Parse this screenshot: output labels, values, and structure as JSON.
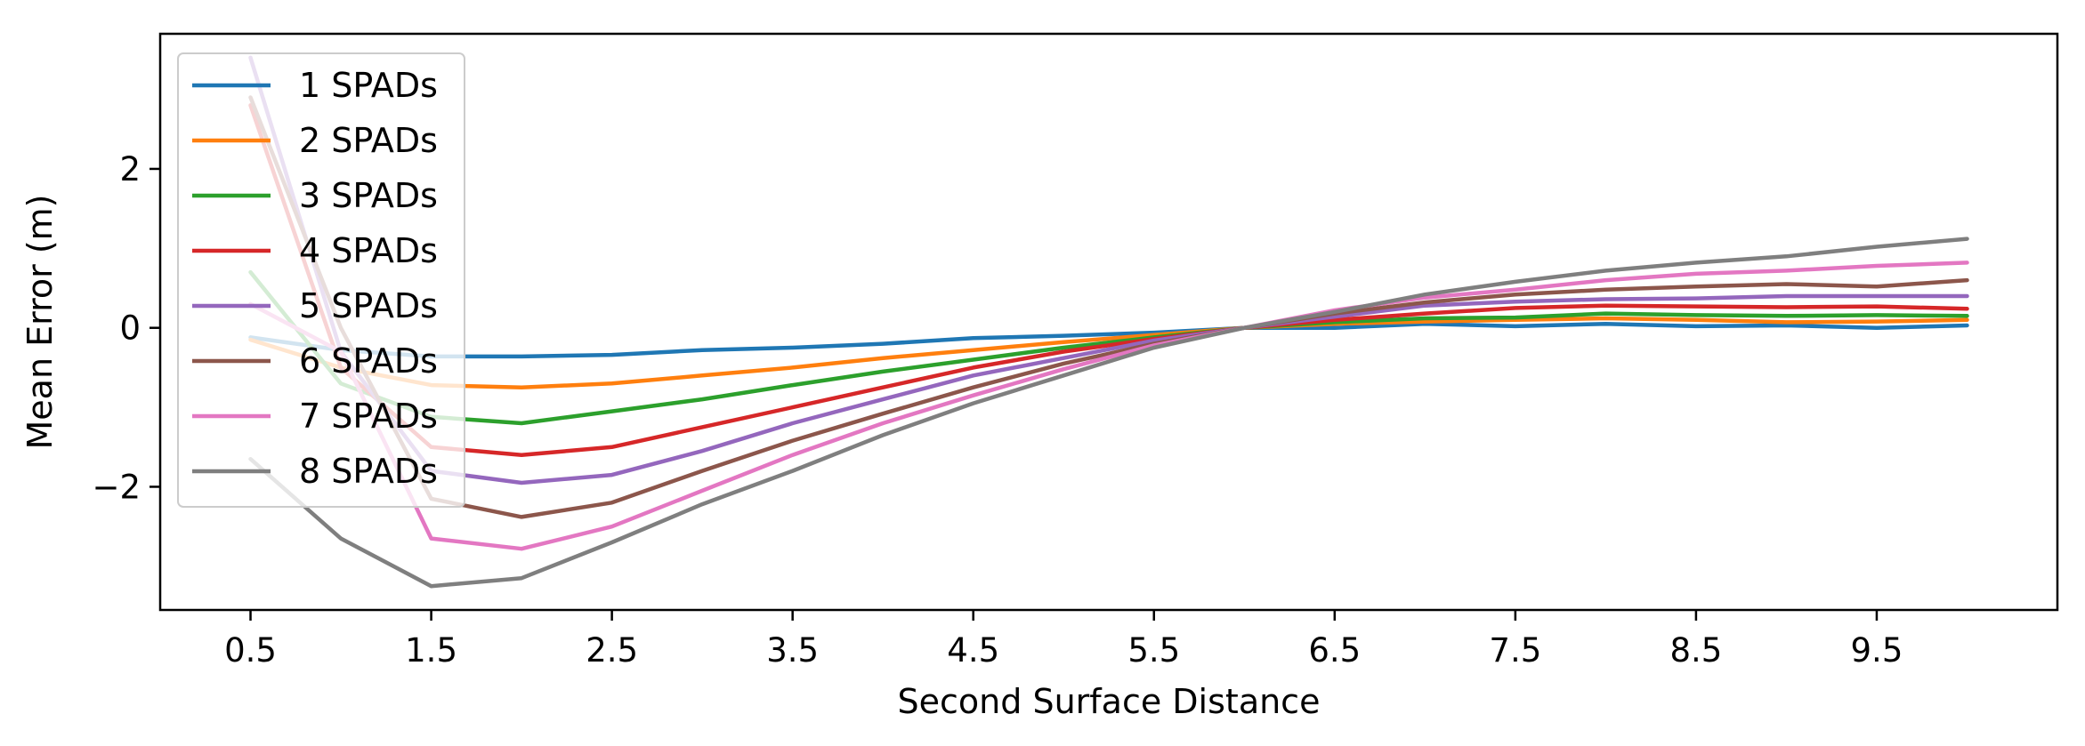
{
  "chart_data": {
    "type": "line",
    "title": "",
    "xlabel": "Second Surface Distance",
    "ylabel": "Mean Error (m)",
    "xlim": [
      0.0,
      10.5
    ],
    "ylim": [
      -3.55,
      3.7
    ],
    "xticks": [
      0.5,
      1.5,
      2.5,
      3.5,
      4.5,
      5.5,
      6.5,
      7.5,
      8.5,
      9.5
    ],
    "xtick_labels": [
      "0.5",
      "1.5",
      "2.5",
      "3.5",
      "4.5",
      "5.5",
      "6.5",
      "7.5",
      "8.5",
      "9.5"
    ],
    "yticks": [
      -2,
      0,
      2
    ],
    "ytick_labels": [
      "−2",
      "0",
      "2"
    ],
    "grid": false,
    "legend_position": "upper-left",
    "x": [
      0.5,
      1.0,
      1.5,
      2.0,
      2.5,
      3.0,
      3.5,
      4.0,
      4.5,
      5.0,
      5.5,
      6.0,
      6.5,
      7.0,
      7.5,
      8.0,
      8.5,
      9.0,
      9.5,
      10.0
    ],
    "series": [
      {
        "name": "1 SPADs",
        "color": "#1f77b4",
        "values": [
          -0.12,
          -0.28,
          -0.36,
          -0.36,
          -0.34,
          -0.28,
          -0.25,
          -0.2,
          -0.13,
          -0.1,
          -0.06,
          0.0,
          0.0,
          0.05,
          0.02,
          0.05,
          0.02,
          0.03,
          0.0,
          0.03
        ]
      },
      {
        "name": "2 SPADs",
        "color": "#ff7f0e",
        "values": [
          -0.15,
          -0.5,
          -0.72,
          -0.75,
          -0.7,
          -0.6,
          -0.5,
          -0.38,
          -0.28,
          -0.18,
          -0.09,
          0.0,
          0.05,
          0.08,
          0.1,
          0.12,
          0.1,
          0.07,
          0.08,
          0.1
        ]
      },
      {
        "name": "3 SPADs",
        "color": "#2ca02c",
        "values": [
          0.7,
          -0.7,
          -1.12,
          -1.2,
          -1.05,
          -0.9,
          -0.72,
          -0.55,
          -0.4,
          -0.25,
          -0.12,
          0.0,
          0.07,
          0.12,
          0.13,
          0.18,
          0.16,
          0.15,
          0.16,
          0.15
        ]
      },
      {
        "name": "4 SPADs",
        "color": "#d62728",
        "values": [
          2.8,
          -0.5,
          -1.5,
          -1.6,
          -1.5,
          -1.25,
          -1.0,
          -0.75,
          -0.5,
          -0.3,
          -0.14,
          0.0,
          0.1,
          0.18,
          0.25,
          0.28,
          0.27,
          0.26,
          0.27,
          0.24
        ]
      },
      {
        "name": "5 SPADs",
        "color": "#9467bd",
        "values": [
          3.4,
          -0.3,
          -1.8,
          -1.95,
          -1.85,
          -1.55,
          -1.2,
          -0.9,
          -0.6,
          -0.38,
          -0.16,
          0.0,
          0.14,
          0.28,
          0.33,
          0.36,
          0.37,
          0.4,
          0.4,
          0.4
        ]
      },
      {
        "name": "6 SPADs",
        "color": "#8c564b",
        "values": [
          2.9,
          0.0,
          -2.15,
          -2.38,
          -2.2,
          -1.8,
          -1.42,
          -1.08,
          -0.75,
          -0.45,
          -0.2,
          0.0,
          0.18,
          0.32,
          0.42,
          0.48,
          0.52,
          0.55,
          0.52,
          0.6
        ]
      },
      {
        "name": "7 SPADs",
        "color": "#e377c2",
        "values": [
          0.3,
          -0.3,
          -2.65,
          -2.78,
          -2.5,
          -2.05,
          -1.6,
          -1.2,
          -0.85,
          -0.52,
          -0.22,
          0.0,
          0.22,
          0.38,
          0.48,
          0.6,
          0.68,
          0.72,
          0.78,
          0.82
        ]
      },
      {
        "name": "8 SPADs",
        "color": "#7f7f7f",
        "values": [
          -1.65,
          -2.65,
          -3.25,
          -3.15,
          -2.7,
          -2.22,
          -1.8,
          -1.35,
          -0.95,
          -0.6,
          -0.25,
          0.0,
          0.2,
          0.42,
          0.58,
          0.72,
          0.82,
          0.9,
          1.02,
          1.12
        ]
      }
    ]
  }
}
